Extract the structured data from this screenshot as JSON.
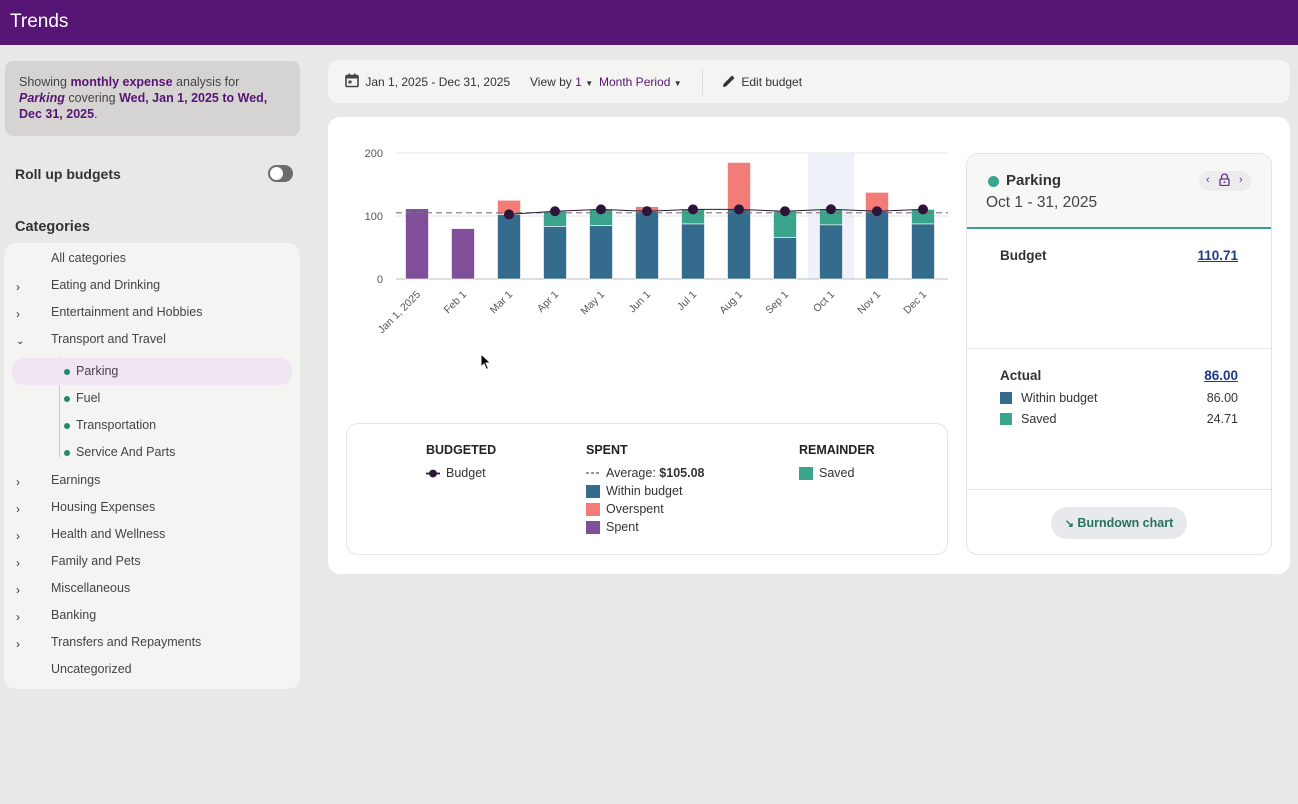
{
  "app": {
    "title": "Trends"
  },
  "summary": {
    "prefix": "Showing ",
    "analysis_type": "monthly expense",
    "mid": " analysis for ",
    "category": "Parking",
    "covering": " covering ",
    "range": "Wed, Jan 1, 2025 to Wed, Dec 31, 2025",
    "suffix": "."
  },
  "rollup": {
    "label": "Roll up budgets",
    "enabled": false
  },
  "categories": {
    "title": "Categories",
    "items": [
      {
        "label": "All categories",
        "expandable": false
      },
      {
        "label": "Eating and Drinking",
        "expandable": true
      },
      {
        "label": "Entertainment and Hobbies",
        "expandable": true
      },
      {
        "label": "Transport and Travel",
        "expandable": true,
        "expanded": true
      },
      {
        "label": "Earnings",
        "expandable": true
      },
      {
        "label": "Housing Expenses",
        "expandable": true
      },
      {
        "label": "Health and Wellness",
        "expandable": true
      },
      {
        "label": "Family and Pets",
        "expandable": true
      },
      {
        "label": "Miscellaneous",
        "expandable": true
      },
      {
        "label": "Banking",
        "expandable": true
      },
      {
        "label": "Transfers and Repayments",
        "expandable": true
      },
      {
        "label": "Uncategorized",
        "expandable": false
      }
    ],
    "subitems": [
      {
        "label": "Parking",
        "active": true
      },
      {
        "label": "Fuel"
      },
      {
        "label": "Transportation"
      },
      {
        "label": "Service And Parts"
      }
    ]
  },
  "toolbar": {
    "date_range": "Jan 1, 2025 - Dec 31, 2025",
    "view_by_label": "View by",
    "view_by_value": "1",
    "period": "Month Period",
    "edit_budget": "Edit budget"
  },
  "legend": {
    "budgeted_head": "BUDGETED",
    "budget_label": "Budget",
    "spent_head": "SPENT",
    "average_label": "Average:",
    "average_value": "$105.08",
    "within_label": "Within budget",
    "overspent_label": "Overspent",
    "spent_label": "Spent",
    "remainder_head": "REMAINDER",
    "saved_label": "Saved"
  },
  "detail": {
    "category": "Parking",
    "range": "Oct 1 - 31, 2025",
    "budget_label": "Budget",
    "budget_value": "110.71",
    "actual_label": "Actual",
    "actual_value": "86.00",
    "within_label": "Within budget",
    "within_value": "86.00",
    "saved_label": "Saved",
    "saved_value": "24.71",
    "burndown_label": "Burndown chart"
  },
  "colors": {
    "brand": "#561574",
    "within": "#356b8c",
    "overspent": "#f47c78",
    "spent": "#7f4f99",
    "saved": "#3aa48d",
    "budget_marker": "#2c1538",
    "highlight": "#eef1f8"
  },
  "chart_data": {
    "type": "bar",
    "title": "",
    "xlabel": "",
    "ylabel": "",
    "ylim": [
      0,
      200
    ],
    "yticks": [
      0,
      100,
      200
    ],
    "grid": true,
    "categories": [
      "Jan 1, 2025",
      "Feb 1",
      "Mar 1",
      "Apr 1",
      "May 1",
      "Jun 1",
      "Jul 1",
      "Aug 1",
      "Sep 1",
      "Oct 1",
      "Nov 1",
      "Dec 1"
    ],
    "highlighted_category": "Oct 1",
    "average": 105.08,
    "series": [
      {
        "name": "Spent",
        "values": [
          111.5,
          80,
          0,
          0,
          0,
          0,
          0,
          0,
          0,
          0,
          0,
          0
        ]
      },
      {
        "name": "Within budget",
        "values": [
          0,
          0,
          102.5,
          83.5,
          85,
          107.5,
          87.5,
          110.5,
          66,
          86,
          107.5,
          87.5
        ]
      },
      {
        "name": "Overspent",
        "values": [
          0,
          0,
          22.5,
          0,
          0,
          7.5,
          0,
          74.5,
          0,
          0,
          30,
          0
        ]
      },
      {
        "name": "Saved",
        "values": [
          0,
          0,
          0,
          24,
          25.5,
          0,
          23,
          0,
          41.5,
          24.71,
          0,
          23
        ]
      },
      {
        "name": "Budget",
        "values": [
          null,
          null,
          102.5,
          107.5,
          110.5,
          107.5,
          110.5,
          110.5,
          107.5,
          110.71,
          107.5,
          110.5
        ]
      }
    ]
  }
}
